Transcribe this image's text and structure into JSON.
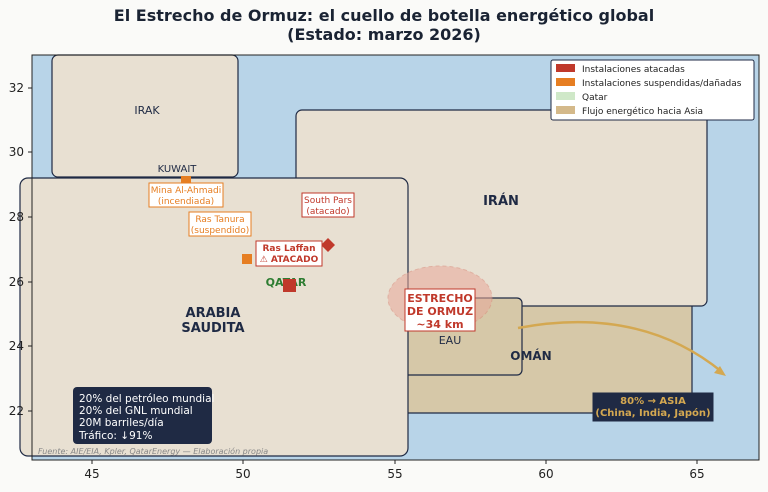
{
  "title": {
    "line1": "El Estrecho de Ormuz: el cuello de botella energético global",
    "line2": "(Estado: marzo 2026)"
  },
  "axes": {
    "x_ticks": [
      "45",
      "50",
      "55",
      "60",
      "65"
    ],
    "y_ticks": [
      "22",
      "24",
      "26",
      "28",
      "30",
      "32"
    ],
    "xlim": [
      43,
      67
    ],
    "ylim": [
      20.5,
      33
    ]
  },
  "countries": {
    "iraq": "IRAK",
    "kuwait": "KUWAIT",
    "iran": "IRÁN",
    "saudi_line1": "ARABIA",
    "saudi_line2": "SAUDITA",
    "qatar": "QATAR",
    "uae": "EAU",
    "oman": "OMÁN"
  },
  "annotations": {
    "mina_line1": "Mina Al-Ahmadi",
    "mina_line2": "(incendiada)",
    "ras_tanura_line1": "Ras Tanura",
    "ras_tanura_line2": "(suspendido)",
    "ras_laffan_line1": "Ras Laffan",
    "ras_laffan_line2": "⚠ ATACADO",
    "south_pars_line1": "South Pars",
    "south_pars_line2": "(atacado)",
    "strait_line1": "ESTRECHO",
    "strait_line2": "DE ORMUZ",
    "strait_line3": "~34 km",
    "asia_line1": "80% → ASIA",
    "asia_line2": "(China, India, Japón)"
  },
  "stats": [
    "20% del petróleo mundial",
    "20% del GNL mundial",
    "20M barriles/día",
    "Tráfico: ↓91%"
  ],
  "source": "Fuente: AIE/EIA, Kpler, QatarEnergy — Elaboración propia",
  "legend": [
    {
      "label": "Instalaciones atacadas",
      "color": "#c0392b"
    },
    {
      "label": "Instalaciones suspendidas/dañadas",
      "color": "#e67e22"
    },
    {
      "label": "Qatar",
      "color": "#cfe8c8"
    },
    {
      "label": "Flujo energético hacia Asia",
      "color": "#d4b98a"
    }
  ],
  "colors": {
    "sea": "#b8d4e8",
    "land": "#e8e0d2",
    "oman_land": "#d6c8a8",
    "attacked": "#c0392b",
    "suspended": "#e67e22",
    "qatar_text": "#2e7d32",
    "flow": "#d4a851",
    "stats_box": "#1f2a44"
  }
}
